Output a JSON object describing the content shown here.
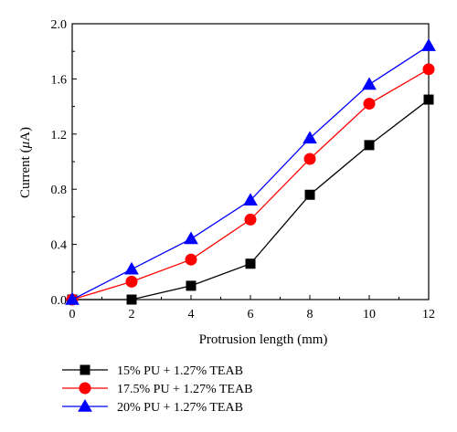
{
  "chart_data": {
    "type": "line",
    "xlabel": "Protrusion length (mm)",
    "ylabel_prefix": "Current (",
    "ylabel_symbol": "μ",
    "ylabel_suffix": "A)",
    "xlim": [
      0,
      12
    ],
    "ylim": [
      0,
      2.0
    ],
    "x_ticks": [
      0,
      2,
      4,
      6,
      8,
      10,
      12
    ],
    "y_ticks": [
      "0.0",
      "0.4",
      "0.8",
      "1.2",
      "1.6",
      "2.0"
    ],
    "y_tick_values": [
      0,
      0.4,
      0.8,
      1.2,
      1.6,
      2.0
    ],
    "grid": false,
    "legend_position": "bottom",
    "x": [
      0,
      2,
      4,
      6,
      8,
      10,
      12
    ],
    "series": [
      {
        "name": "15% PU + 1.27% TEAB",
        "values": [
          0.0,
          0.0,
          0.1,
          0.26,
          0.76,
          1.12,
          1.45
        ],
        "color": "#000000",
        "marker": "square"
      },
      {
        "name": "17.5% PU + 1.27% TEAB",
        "values": [
          0.0,
          0.13,
          0.29,
          0.58,
          1.02,
          1.42,
          1.67
        ],
        "color": "#ff0000",
        "marker": "circle"
      },
      {
        "name": "20% PU + 1.27% TEAB",
        "values": [
          0.0,
          0.22,
          0.44,
          0.72,
          1.17,
          1.56,
          1.84
        ],
        "color": "#0000ff",
        "marker": "triangle"
      }
    ]
  }
}
